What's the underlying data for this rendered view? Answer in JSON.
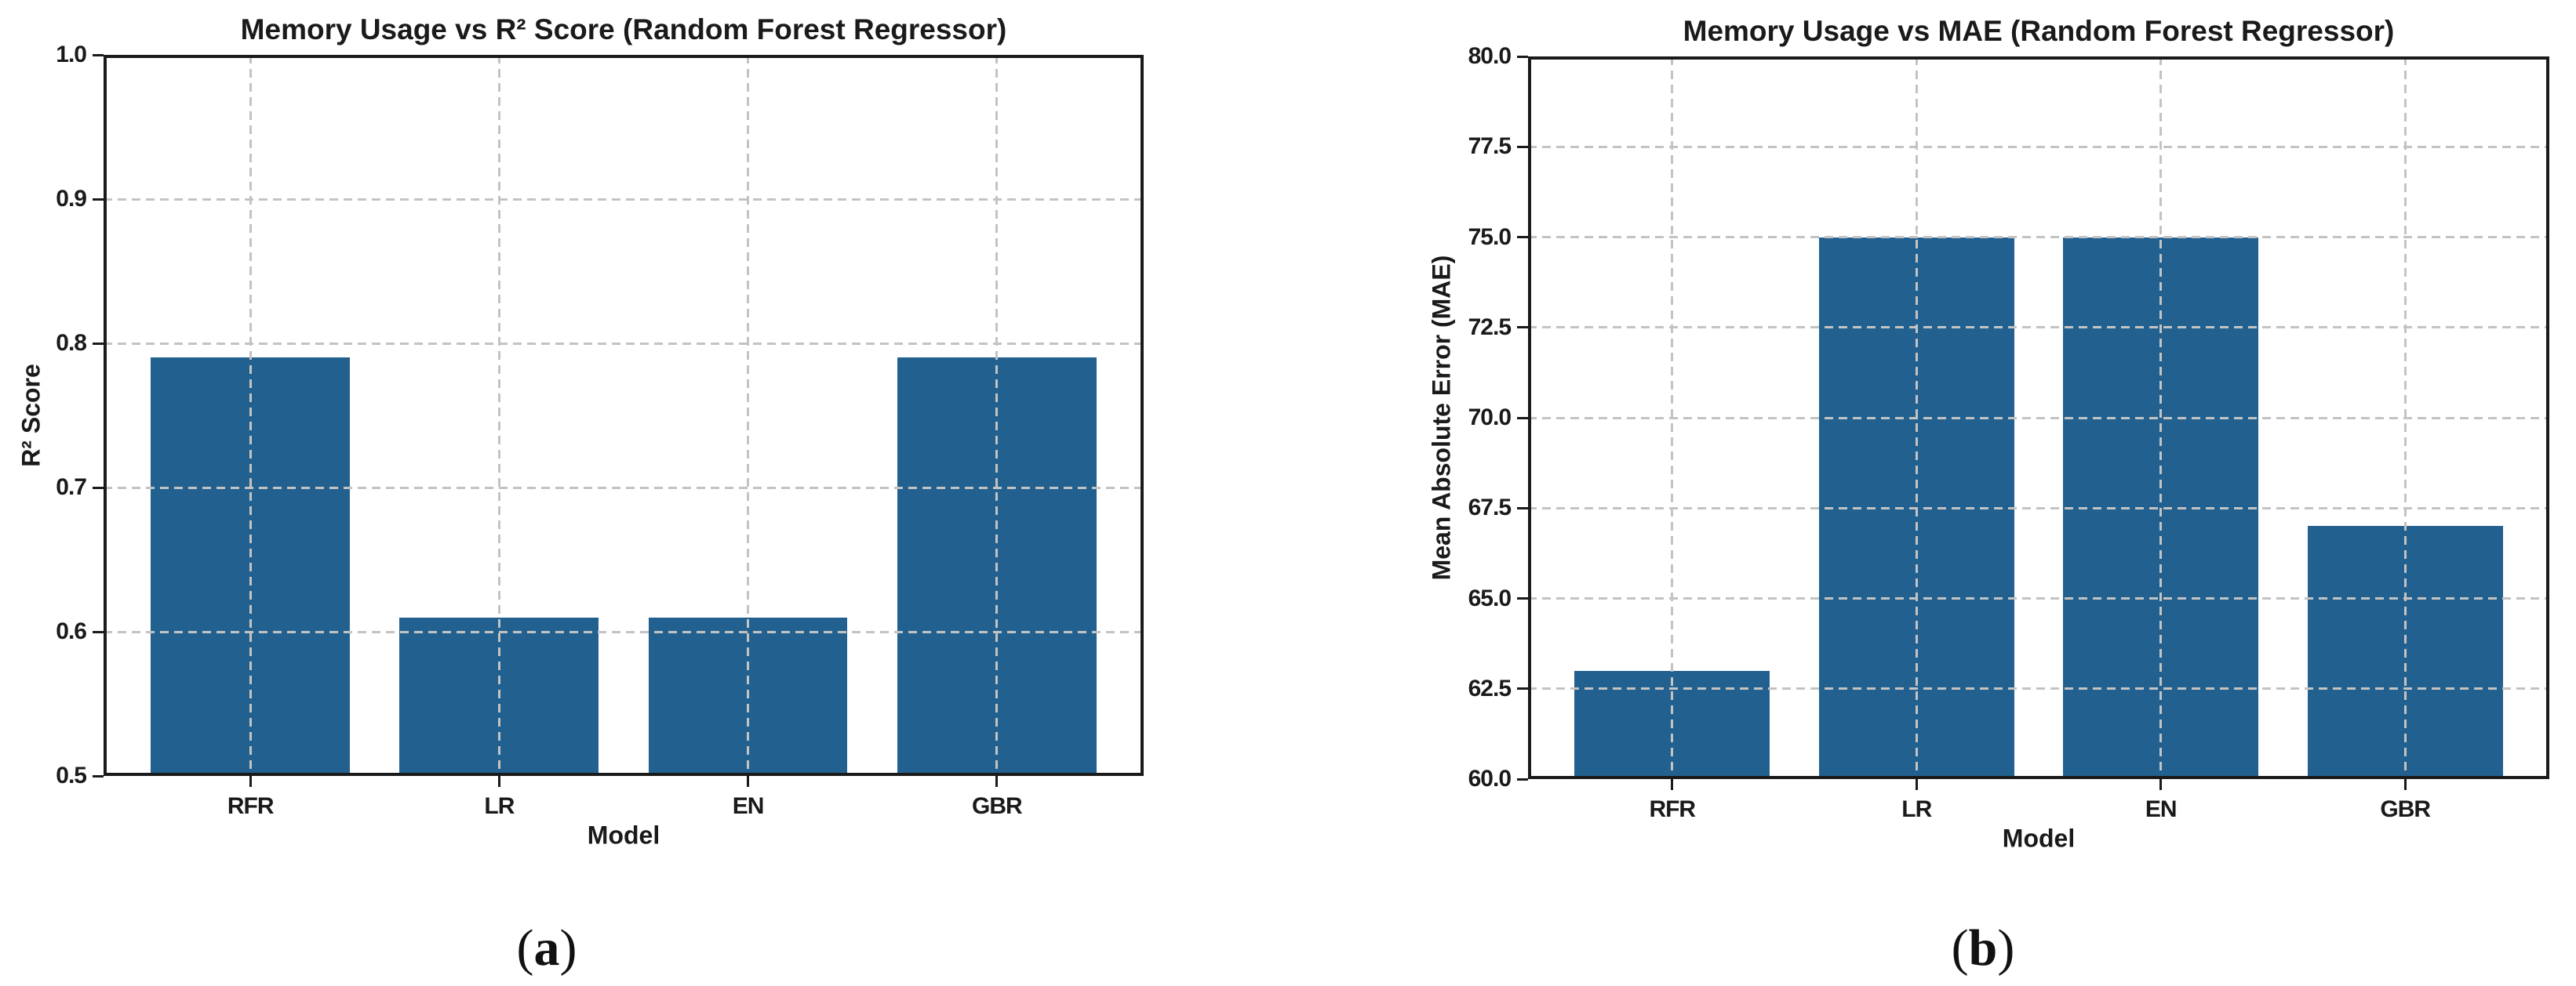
{
  "page": {
    "background": "#ffffff",
    "text_color": "#1a1a1a"
  },
  "chart_data": [
    {
      "type": "bar",
      "title": "Memory Usage vs R² Score (Random Forest Regressor)",
      "xlabel": "Model",
      "ylabel": "R² Score",
      "categories": [
        "RFR",
        "LR",
        "EN",
        "GBR"
      ],
      "values": [
        0.79,
        0.61,
        0.61,
        0.79
      ],
      "ylim": [
        0.5,
        1.0
      ],
      "yticks": [
        {
          "value": 0.5,
          "label": "0.5"
        },
        {
          "value": 0.6,
          "label": "0.6"
        },
        {
          "value": 0.7,
          "label": "0.7"
        },
        {
          "value": 0.8,
          "label": "0.8"
        },
        {
          "value": 0.9,
          "label": "0.9"
        },
        {
          "value": 1.0,
          "label": "1.0"
        }
      ],
      "grid": true,
      "legend": null,
      "bar_color": "#22618f",
      "grid_color": "#c3c3c3",
      "axis_color": "#1a1a1a",
      "caption_prefix": "(",
      "caption_letter": "a",
      "caption_suffix": ")"
    },
    {
      "type": "bar",
      "title": "Memory Usage vs MAE (Random Forest Regressor)",
      "xlabel": "Model",
      "ylabel": "Mean Absolute Error (MAE)",
      "categories": [
        "RFR",
        "LR",
        "EN",
        "GBR"
      ],
      "values": [
        63.0,
        75.0,
        75.0,
        67.0
      ],
      "ylim": [
        60.0,
        80.0
      ],
      "yticks": [
        {
          "value": 60.0,
          "label": "60.0"
        },
        {
          "value": 62.5,
          "label": "62.5"
        },
        {
          "value": 65.0,
          "label": "65.0"
        },
        {
          "value": 67.5,
          "label": "67.5"
        },
        {
          "value": 70.0,
          "label": "70.0"
        },
        {
          "value": 72.5,
          "label": "72.5"
        },
        {
          "value": 75.0,
          "label": "75.0"
        },
        {
          "value": 77.5,
          "label": "77.5"
        },
        {
          "value": 80.0,
          "label": "80.0"
        }
      ],
      "grid": true,
      "legend": null,
      "bar_color": "#22618f",
      "grid_color": "#c3c3c3",
      "axis_color": "#1a1a1a",
      "caption_prefix": "(",
      "caption_letter": "b",
      "caption_suffix": ")"
    }
  ]
}
